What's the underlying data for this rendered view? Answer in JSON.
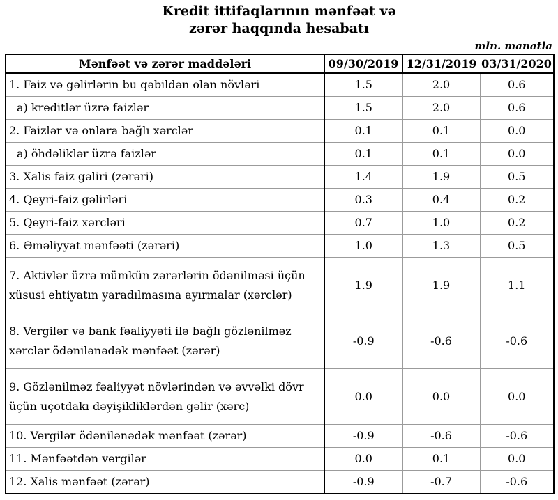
{
  "title": {
    "line1": "Kredit ittifaqlarının mənfəət və",
    "line2": "zərər haqqında hesabatı"
  },
  "unit_note": "mln. manatla",
  "colors": {
    "text": "#000000",
    "background": "#ffffff",
    "thick_border": "#000000",
    "thin_grid": "#9b9b9b"
  },
  "table": {
    "header": {
      "items_label": "Mənfəət və zərər maddələri",
      "columns": [
        "09/30/2019",
        "12/31/2019",
        "03/31/2020"
      ]
    },
    "rows": [
      {
        "label": "1. Faiz və gəlirlərin bu qəbildən olan növləri",
        "values": [
          "1.5",
          "2.0",
          "0.6"
        ],
        "indent": false,
        "tall": false
      },
      {
        "label": "a) kreditlər üzrə faizlər",
        "values": [
          "1.5",
          "2.0",
          "0.6"
        ],
        "indent": true,
        "tall": false
      },
      {
        "label": "2. Faizlər və onlara bağlı xərclər",
        "values": [
          "0.1",
          "0.1",
          "0.0"
        ],
        "indent": false,
        "tall": false
      },
      {
        "label": "a) öhdəliklər üzrə faizlər",
        "values": [
          "0.1",
          "0.1",
          "0.0"
        ],
        "indent": true,
        "tall": false
      },
      {
        "label": "3. Xalis faiz gəliri (zərəri)",
        "values": [
          "1.4",
          "1.9",
          "0.5"
        ],
        "indent": false,
        "tall": false
      },
      {
        "label": "4. Qeyri-faiz gəlirləri",
        "values": [
          "0.3",
          "0.4",
          "0.2"
        ],
        "indent": false,
        "tall": false
      },
      {
        "label": "5. Qeyri-faiz xərcləri",
        "values": [
          "0.7",
          "1.0",
          "0.2"
        ],
        "indent": false,
        "tall": false
      },
      {
        "label": "6. Əməliyyat mənfəəti (zərəri)",
        "values": [
          "1.0",
          "1.3",
          "0.5"
        ],
        "indent": false,
        "tall": false
      },
      {
        "label": "7. Aktivlər üzrə mümkün zərərlərin ödənilməsi üçün xüsusi ehtiyatın yaradılmasına ayırmalar (xərclər)",
        "values": [
          "1.9",
          "1.9",
          "1.1"
        ],
        "indent": false,
        "tall": true
      },
      {
        "label": "8. Vergilər və bank fəaliyyəti ilə bağlı gözlənilməz xərclər ödənilənədək mənfəət (zərər)",
        "values": [
          "-0.9",
          "-0.6",
          "-0.6"
        ],
        "indent": false,
        "tall": true
      },
      {
        "label": "9. Gözlənilməz fəaliyyət növlərindən və əvvəlki dövr üçün uçotdakı dəyişikliklərdən gəlir (xərc)",
        "values": [
          "0.0",
          "0.0",
          "0.0"
        ],
        "indent": false,
        "tall": true
      },
      {
        "label": "10. Vergilər ödənilənədək mənfəət (zərər)",
        "values": [
          "-0.9",
          "-0.6",
          "-0.6"
        ],
        "indent": false,
        "tall": false
      },
      {
        "label": "11. Mənfəətdən vergilər",
        "values": [
          "0.0",
          "0.1",
          "0.0"
        ],
        "indent": false,
        "tall": false
      },
      {
        "label": "12. Xalis mənfəət (zərər)",
        "values": [
          "-0.9",
          "-0.7",
          "-0.6"
        ],
        "indent": false,
        "tall": false
      }
    ]
  }
}
